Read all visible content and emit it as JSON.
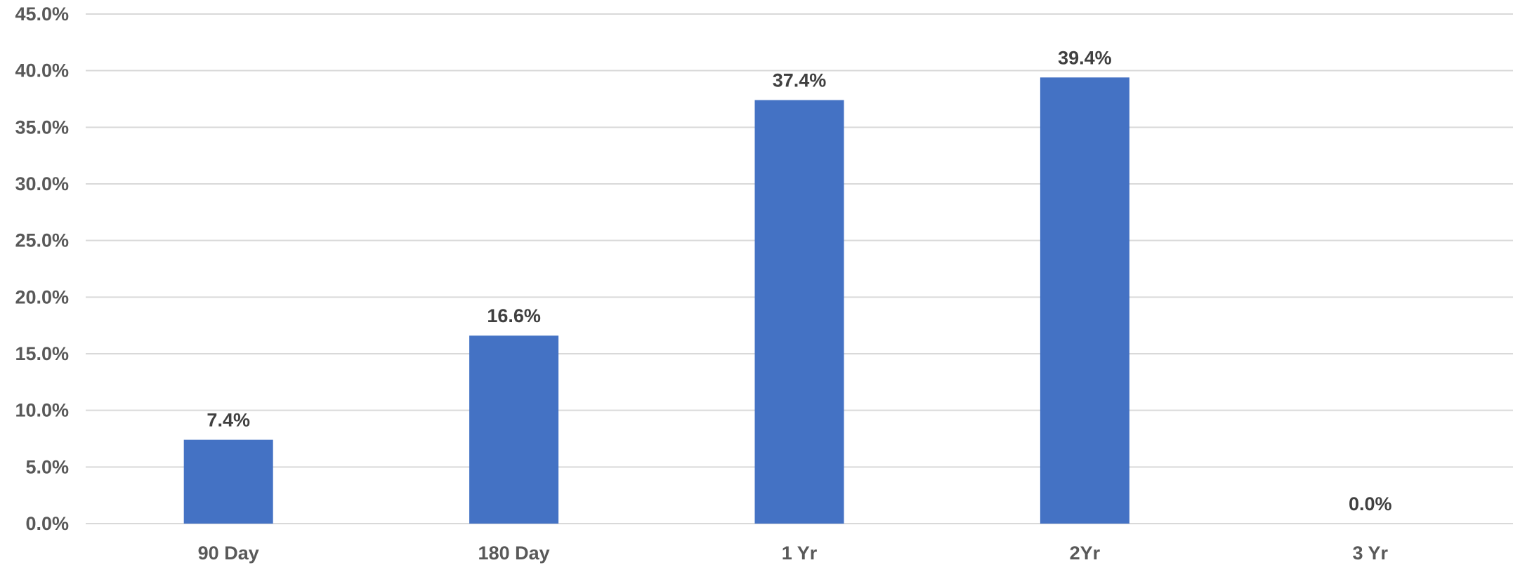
{
  "chart_data": {
    "type": "bar",
    "title": "",
    "xlabel": "",
    "ylabel": "",
    "categories": [
      "90 Day",
      "180 Day",
      "1 Yr",
      "2Yr",
      "3 Yr"
    ],
    "values": [
      7.4,
      16.6,
      37.4,
      39.4,
      0.0
    ],
    "data_labels": [
      "7.4%",
      "16.6%",
      "37.4%",
      "39.4%",
      "0.0%"
    ],
    "ylim": [
      0,
      45
    ],
    "y_ticks": [
      0,
      5,
      10,
      15,
      20,
      25,
      30,
      35,
      40,
      45
    ],
    "y_tick_labels": [
      "0.0%",
      "5.0%",
      "10.0%",
      "15.0%",
      "20.0%",
      "25.0%",
      "30.0%",
      "35.0%",
      "40.0%",
      "45.0%"
    ],
    "grid": true,
    "legend": "none",
    "colors": {
      "bar": "#4472C4",
      "grid": "#D9D9D9",
      "tick_text": "#595959",
      "label_text": "#404040"
    }
  }
}
